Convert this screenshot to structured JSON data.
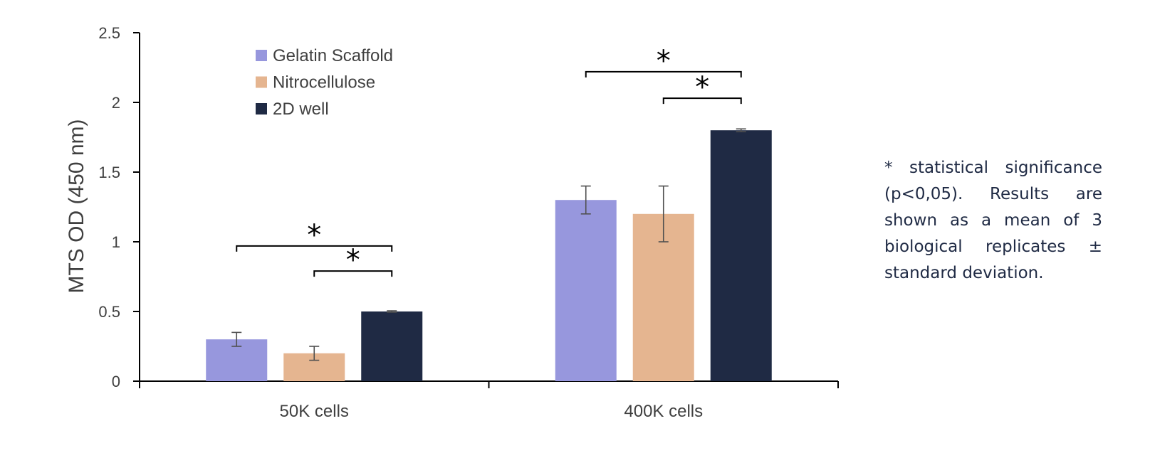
{
  "chart_data": {
    "type": "bar",
    "ylabel": "MTS OD (450 nm)",
    "ylim": [
      0,
      2.5
    ],
    "yticks": [
      "0",
      "0.5",
      "1",
      "1.5",
      "2",
      "2.5"
    ],
    "categories": [
      "50K  cells",
      "400K  cells"
    ],
    "grid": false,
    "legend_position": "top-left",
    "series": [
      {
        "name": "Gelatin Scaffold",
        "color": "#9797dd",
        "values": [
          0.3,
          1.3
        ],
        "errors": [
          0.05,
          0.1
        ]
      },
      {
        "name": "Nitrocellulose",
        "color": "#e5b590",
        "values": [
          0.2,
          1.2
        ],
        "errors": [
          0.05,
          0.2
        ]
      },
      {
        "name": "2D well",
        "color": "#1f2a44",
        "values": [
          0.5,
          1.8
        ],
        "errors": [
          0.005,
          0.01
        ]
      }
    ],
    "significance": [
      {
        "category": 0,
        "from_series": 0,
        "to_series": 2,
        "label": "*",
        "y": 0.97
      },
      {
        "category": 0,
        "from_series": 1,
        "to_series": 2,
        "label": "*",
        "y": 0.79
      },
      {
        "category": 1,
        "from_series": 0,
        "to_series": 2,
        "label": "*",
        "y": 2.22
      },
      {
        "category": 1,
        "from_series": 1,
        "to_series": 2,
        "label": "*",
        "y": 2.03
      }
    ]
  },
  "note": "* statistical significance (p<0,05). Results are shown as a mean of 3 biological replicates ± standard deviation."
}
